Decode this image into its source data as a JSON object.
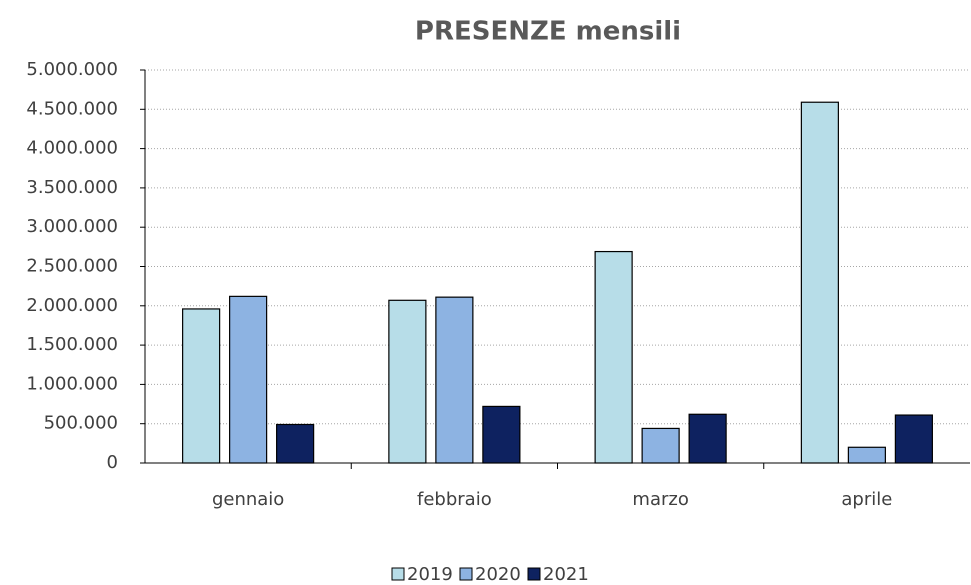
{
  "chart_data": {
    "type": "bar",
    "title": "PRESENZE mensili",
    "categories": [
      "gennaio",
      "febbraio",
      "marzo",
      "aprile"
    ],
    "series": [
      {
        "name": "2019",
        "color": "#b7dde8",
        "values": [
          1960000,
          2070000,
          2690000,
          4590000
        ]
      },
      {
        "name": "2020",
        "color": "#8db3e2",
        "values": [
          2120000,
          2110000,
          440000,
          200000
        ]
      },
      {
        "name": "2021",
        "color": "#0e2260",
        "values": [
          490000,
          720000,
          620000,
          610000
        ]
      }
    ],
    "ylim": [
      0,
      5000000
    ],
    "yticks": [
      0,
      {
        "value": 500000,
        "label": "500.000"
      },
      {
        "value": 1000000,
        "label": "1.000.000"
      },
      {
        "value": 1500000,
        "label": "1.500.000"
      },
      {
        "value": 2000000,
        "label": "2.000.000"
      },
      {
        "value": 2500000,
        "label": "2.500.000"
      },
      {
        "value": 3000000,
        "label": "3.000.000"
      },
      {
        "value": 3500000,
        "label": "3.500.000"
      },
      {
        "value": 4000000,
        "label": "4.000.000"
      },
      {
        "value": 4500000,
        "label": "4.500.000"
      },
      {
        "value": 5000000,
        "label": "5.000.000"
      }
    ],
    "grid": true,
    "legend": "bottom"
  }
}
